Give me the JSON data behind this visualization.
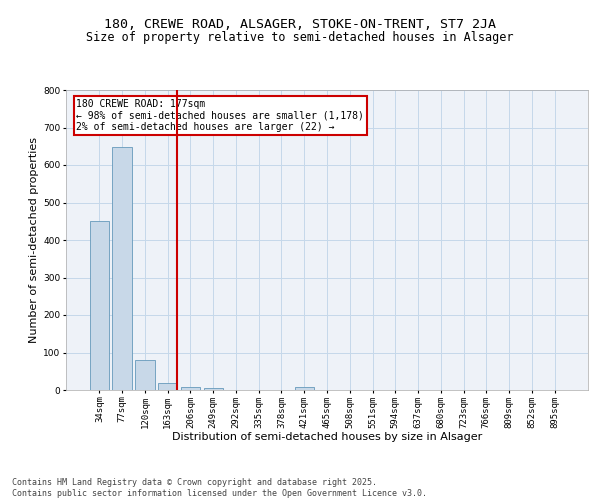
{
  "title_line1": "180, CREWE ROAD, ALSAGER, STOKE-ON-TRENT, ST7 2JA",
  "title_line2": "Size of property relative to semi-detached houses in Alsager",
  "xlabel": "Distribution of semi-detached houses by size in Alsager",
  "ylabel": "Number of semi-detached properties",
  "categories": [
    "34sqm",
    "77sqm",
    "120sqm",
    "163sqm",
    "206sqm",
    "249sqm",
    "292sqm",
    "335sqm",
    "378sqm",
    "421sqm",
    "465sqm",
    "508sqm",
    "551sqm",
    "594sqm",
    "637sqm",
    "680sqm",
    "723sqm",
    "766sqm",
    "809sqm",
    "852sqm",
    "895sqm"
  ],
  "values": [
    450,
    648,
    80,
    20,
    8,
    5,
    0,
    0,
    0,
    7,
    0,
    0,
    0,
    0,
    0,
    0,
    0,
    0,
    0,
    0,
    0
  ],
  "bar_color": "#c8d8e8",
  "bar_edge_color": "#6699bb",
  "vline_x_index": 3,
  "vline_color": "#cc0000",
  "annotation_text_line1": "180 CREWE ROAD: 177sqm",
  "annotation_text_line2": "← 98% of semi-detached houses are smaller (1,178)",
  "annotation_text_line3": "2% of semi-detached houses are larger (22) →",
  "annotation_box_color": "#cc0000",
  "ylim": [
    0,
    800
  ],
  "yticks": [
    0,
    100,
    200,
    300,
    400,
    500,
    600,
    700,
    800
  ],
  "grid_color": "#c5d8ea",
  "background_color": "#eef2f8",
  "footer_line1": "Contains HM Land Registry data © Crown copyright and database right 2025.",
  "footer_line2": "Contains public sector information licensed under the Open Government Licence v3.0.",
  "title_fontsize": 9.5,
  "subtitle_fontsize": 8.5,
  "axis_label_fontsize": 8,
  "tick_fontsize": 6.5,
  "annotation_fontsize": 7,
  "footer_fontsize": 6
}
